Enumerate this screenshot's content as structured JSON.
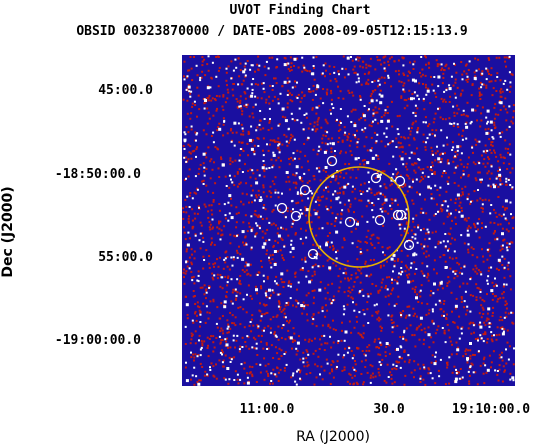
{
  "chart_data": {
    "type": "image",
    "title": "UVOT Finding Chart",
    "subtitle": "OBSID 00323870000 / DATE-OBS 2008-09-05T12:15:13.9",
    "xlabel": "RA (J2000)",
    "ylabel": "Dec (J2000)",
    "x_ticks": [
      "11:00.0",
      "30.0",
      "19:10:00.0"
    ],
    "y_ticks": [
      "45:00.0",
      "-18:50:00.0",
      "55:00.0",
      "-19:00:00.0"
    ],
    "grid": false,
    "colors": {
      "background_field": "#1a0fa0",
      "noise_red": "#c41a10",
      "noise_white": "#ffffff",
      "error_circle": "#e8b000",
      "source_circle": "#ffffff"
    }
  }
}
